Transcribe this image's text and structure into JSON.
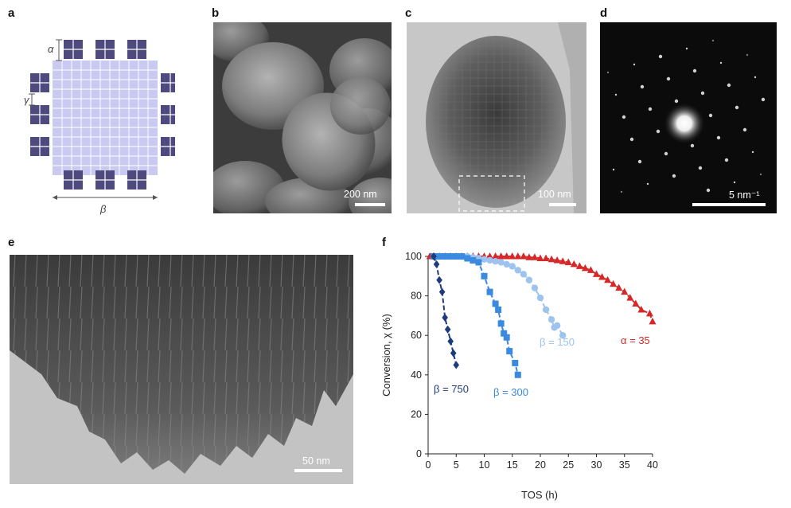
{
  "panels": {
    "a": {
      "letter": "a",
      "labels": {
        "alpha": "α",
        "gamma": "γ",
        "beta": "β"
      },
      "colors": {
        "core": "#c9c9f2",
        "grid": "#ffffff",
        "block": "#4e4a7e"
      }
    },
    "b": {
      "letter": "b",
      "scalebar": "200 nm"
    },
    "c": {
      "letter": "c",
      "scalebar": "100 nm"
    },
    "d": {
      "letter": "d",
      "scalebar": "5 nm⁻¹"
    },
    "e": {
      "letter": "e",
      "scalebar": "50 nm"
    },
    "f": {
      "letter": "f"
    }
  },
  "chart_data": {
    "type": "scatter",
    "xlabel": "TOS (h)",
    "ylabel": "Conversion, χ (%)",
    "xlim": [
      0,
      40
    ],
    "ylim": [
      0,
      100
    ],
    "xticks": [
      0,
      5,
      10,
      15,
      20,
      25,
      30,
      35,
      40
    ],
    "yticks": [
      0,
      20,
      40,
      60,
      80,
      100
    ],
    "grid": false,
    "series": [
      {
        "name": "α = 35",
        "marker": "triangle",
        "color": "#d62828",
        "points": [
          [
            0.3,
            100
          ],
          [
            1,
            100
          ],
          [
            2,
            100
          ],
          [
            3,
            100
          ],
          [
            4,
            100
          ],
          [
            5,
            100
          ],
          [
            6,
            100
          ],
          [
            7,
            100
          ],
          [
            8,
            100
          ],
          [
            9,
            100
          ],
          [
            10,
            100
          ],
          [
            11,
            100
          ],
          [
            12,
            100
          ],
          [
            13,
            100
          ],
          [
            14,
            100
          ],
          [
            15,
            100
          ],
          [
            16,
            100
          ],
          [
            17,
            100
          ],
          [
            18,
            99.5
          ],
          [
            19,
            99.5
          ],
          [
            20,
            99
          ],
          [
            21,
            99
          ],
          [
            22,
            98.5
          ],
          [
            23,
            98
          ],
          [
            24,
            97.5
          ],
          [
            25,
            97
          ],
          [
            26,
            96
          ],
          [
            27,
            95
          ],
          [
            28,
            94
          ],
          [
            29,
            93
          ],
          [
            30,
            91
          ],
          [
            31,
            89.5
          ],
          [
            32,
            88
          ],
          [
            33,
            86
          ],
          [
            34,
            84
          ],
          [
            35,
            82
          ],
          [
            36,
            79
          ],
          [
            37,
            76
          ],
          [
            38,
            73
          ],
          [
            39.5,
            71
          ],
          [
            40,
            67
          ]
        ]
      },
      {
        "name": "β = 150",
        "marker": "circle",
        "color": "#9dc3ee",
        "points": [
          [
            1,
            100
          ],
          [
            2,
            100
          ],
          [
            3,
            100
          ],
          [
            4,
            100
          ],
          [
            5,
            100
          ],
          [
            6,
            100
          ],
          [
            7,
            100
          ],
          [
            8,
            99.5
          ],
          [
            9,
            99
          ],
          [
            10,
            98.5
          ],
          [
            11,
            98
          ],
          [
            12,
            97.5
          ],
          [
            13,
            97
          ],
          [
            14,
            96
          ],
          [
            15,
            95
          ],
          [
            16,
            93
          ],
          [
            17,
            91
          ],
          [
            18,
            88
          ],
          [
            19,
            84
          ],
          [
            20,
            79
          ],
          [
            21,
            73
          ],
          [
            22,
            68
          ],
          [
            22.5,
            64
          ],
          [
            23,
            65
          ],
          [
            24,
            60
          ]
        ]
      },
      {
        "name": "β = 300",
        "marker": "square",
        "color": "#3a8ae0",
        "points": [
          [
            1,
            100
          ],
          [
            2,
            100
          ],
          [
            3,
            100
          ],
          [
            4,
            100
          ],
          [
            5,
            100
          ],
          [
            6,
            100
          ],
          [
            7,
            99
          ],
          [
            8,
            98
          ],
          [
            9,
            97
          ],
          [
            10,
            90
          ],
          [
            11,
            82
          ],
          [
            12,
            76
          ],
          [
            12.5,
            73
          ],
          [
            13,
            66
          ],
          [
            13.5,
            61
          ],
          [
            14,
            59
          ],
          [
            14.5,
            52
          ],
          [
            15.5,
            46
          ],
          [
            16,
            40
          ]
        ]
      },
      {
        "name": "β = 750",
        "marker": "diamond",
        "color": "#1e3c7c",
        "points": [
          [
            1,
            100
          ],
          [
            1.5,
            96
          ],
          [
            2,
            88
          ],
          [
            2.5,
            82
          ],
          [
            3,
            69
          ],
          [
            3.5,
            63
          ],
          [
            4,
            57
          ],
          [
            4.5,
            51
          ],
          [
            5,
            45
          ]
        ]
      }
    ],
    "annotations": [
      "β = 750",
      "β = 300",
      "β = 150",
      "α = 35"
    ]
  }
}
